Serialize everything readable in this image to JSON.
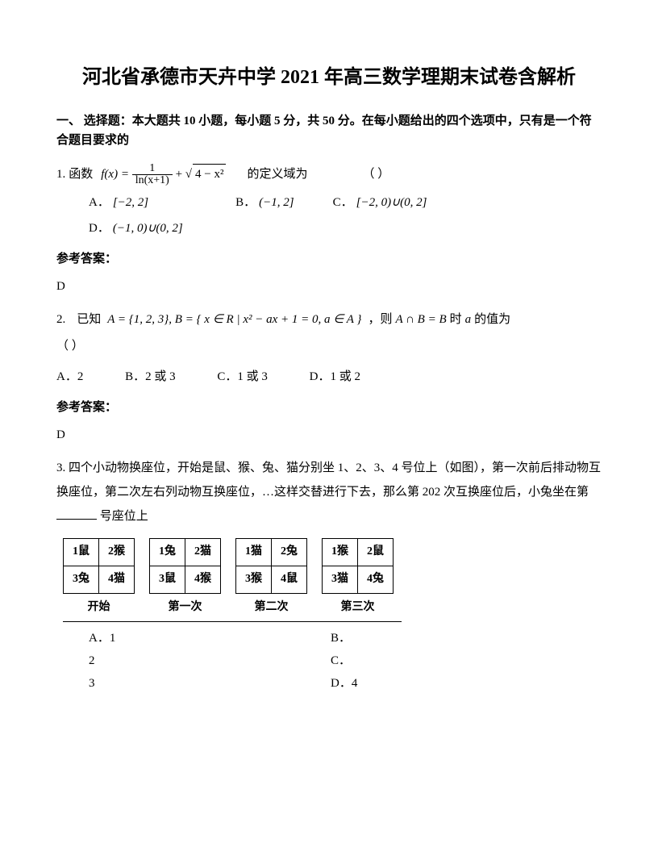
{
  "title": "河北省承德市天卉中学 2021 年高三数学理期末试卷含解析",
  "section1": "一、 选择题：本大题共 10 小题，每小题 5 分，共 50 分。在每小题给出的四个选项中，只有是一个符合题目要求的",
  "q1": {
    "num": "1.",
    "pre": "函数",
    "formula_fx": "f(x) =",
    "frac_num": "1",
    "frac_den": "ln(x+1)",
    "plus": " + ",
    "sqrt_inner": "4 − x²",
    "post": "的定义域为",
    "paren": "（        ）",
    "optA_label": "A．",
    "optA": "[−2, 2]",
    "optB_label": "B．",
    "optB": "(−1, 2]",
    "optC_label": "C．",
    "optC": "[−2, 0)∪(0, 2]",
    "optD_label": "D．",
    "optD": "(−1, 0)∪(0, 2]"
  },
  "answer_label": "参考答案：",
  "q1_answer": "D",
  "q2": {
    "num": "2.",
    "pre": "已知",
    "setA": "A = {1, 2, 3}, B = { x ∈ R | x² − ax + 1 = 0, a ∈ A }",
    "mid": "，则",
    "intersect": "A ∩ B = B",
    "post": " 时",
    "avar": "a",
    "post2": " 的值为",
    "paren": "（        ）",
    "optA": "A．2",
    "optB": "B．2 或 3",
    "optC": "C．1 或 3",
    "optD": "D．1 或 2"
  },
  "q2_answer": "D",
  "q3": {
    "num": "3.",
    "text1": "四个小动物换座位，开始是鼠、猴、兔、猫分别坐 1、2、3、4 号位上（如图），第一次前后排动物互换座位，第二次左右列动物互换座位，…这样交替进行下去，那么第 202 次互换座位后，小兔坐在第",
    "text2": "号座位上",
    "tables": [
      {
        "caption": "开始",
        "cells": [
          [
            "1鼠",
            "2猴"
          ],
          [
            "3兔",
            "4猫"
          ]
        ]
      },
      {
        "caption": "第一次",
        "cells": [
          [
            "1兔",
            "2猫"
          ],
          [
            "3鼠",
            "4猴"
          ]
        ]
      },
      {
        "caption": "第二次",
        "cells": [
          [
            "1猫",
            "2兔"
          ],
          [
            "3猴",
            "4鼠"
          ]
        ]
      },
      {
        "caption": "第三次",
        "cells": [
          [
            "1猴",
            "2鼠"
          ],
          [
            "3猫",
            "4兔"
          ]
        ]
      }
    ],
    "optA": "A．1",
    "optB": "B．",
    "r2l": "2",
    "optC": "C．",
    "r3l": "3",
    "optD": "D．4"
  },
  "colors": {
    "text": "#000000",
    "bg": "#ffffff",
    "border": "#000000"
  }
}
